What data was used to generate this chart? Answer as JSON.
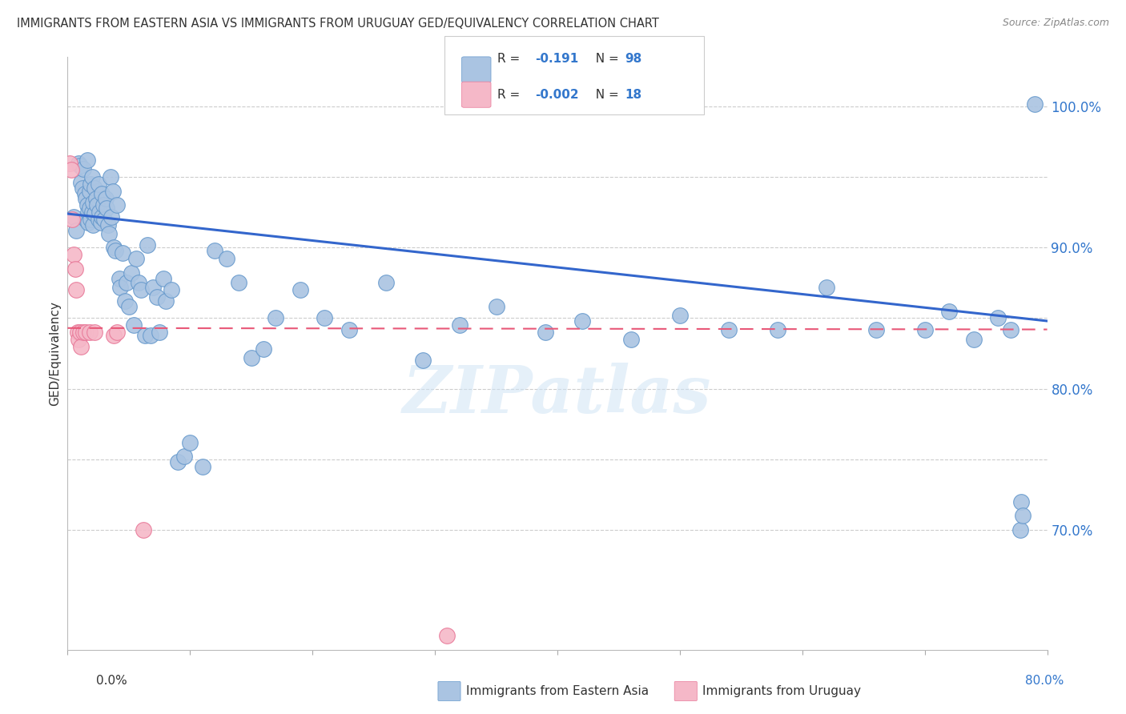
{
  "title": "IMMIGRANTS FROM EASTERN ASIA VS IMMIGRANTS FROM URUGUAY GED/EQUIVALENCY CORRELATION CHART",
  "source": "Source: ZipAtlas.com",
  "ylabel": "GED/Equivalency",
  "xlim": [
    0.0,
    0.8
  ],
  "ylim": [
    0.615,
    1.035
  ],
  "ytick_positions": [
    0.7,
    0.8,
    0.9,
    1.0
  ],
  "ytick_labels": [
    "70.0%",
    "80.0%",
    "90.0%",
    "100.0%"
  ],
  "ygrid_positions": [
    0.7,
    0.75,
    0.8,
    0.85,
    0.9,
    0.95,
    1.0
  ],
  "legend_v1": "-0.191",
  "legend_n1": "98",
  "legend_v2": "-0.002",
  "legend_n2": "18",
  "blue_color": "#aac4e2",
  "blue_edge": "#6699cc",
  "pink_color": "#f5b8c8",
  "pink_edge": "#e87898",
  "trend_blue": "#3366cc",
  "trend_pink": "#e85878",
  "blue_x": [
    0.005,
    0.007,
    0.009,
    0.01,
    0.011,
    0.012,
    0.013,
    0.014,
    0.015,
    0.015,
    0.016,
    0.016,
    0.017,
    0.017,
    0.018,
    0.018,
    0.019,
    0.019,
    0.02,
    0.02,
    0.021,
    0.021,
    0.022,
    0.022,
    0.023,
    0.024,
    0.025,
    0.025,
    0.026,
    0.027,
    0.028,
    0.028,
    0.029,
    0.03,
    0.031,
    0.032,
    0.033,
    0.034,
    0.035,
    0.036,
    0.037,
    0.038,
    0.039,
    0.04,
    0.042,
    0.043,
    0.045,
    0.047,
    0.048,
    0.05,
    0.052,
    0.054,
    0.056,
    0.058,
    0.06,
    0.063,
    0.065,
    0.068,
    0.07,
    0.073,
    0.075,
    0.078,
    0.08,
    0.085,
    0.09,
    0.095,
    0.1,
    0.11,
    0.12,
    0.13,
    0.14,
    0.15,
    0.16,
    0.17,
    0.19,
    0.21,
    0.23,
    0.26,
    0.29,
    0.32,
    0.35,
    0.39,
    0.42,
    0.46,
    0.5,
    0.54,
    0.58,
    0.62,
    0.66,
    0.7,
    0.72,
    0.74,
    0.76,
    0.77,
    0.778,
    0.779,
    0.78,
    0.79
  ],
  "blue_y": [
    0.922,
    0.912,
    0.96,
    0.958,
    0.946,
    0.942,
    0.956,
    0.938,
    0.92,
    0.935,
    0.962,
    0.93,
    0.925,
    0.918,
    0.94,
    0.928,
    0.92,
    0.945,
    0.925,
    0.95,
    0.932,
    0.916,
    0.942,
    0.924,
    0.935,
    0.93,
    0.92,
    0.945,
    0.925,
    0.918,
    0.922,
    0.938,
    0.93,
    0.92,
    0.935,
    0.928,
    0.916,
    0.91,
    0.95,
    0.922,
    0.94,
    0.9,
    0.898,
    0.93,
    0.878,
    0.872,
    0.896,
    0.862,
    0.875,
    0.858,
    0.882,
    0.845,
    0.892,
    0.875,
    0.87,
    0.838,
    0.902,
    0.838,
    0.872,
    0.865,
    0.84,
    0.878,
    0.862,
    0.87,
    0.748,
    0.752,
    0.762,
    0.745,
    0.898,
    0.892,
    0.875,
    0.822,
    0.828,
    0.85,
    0.87,
    0.85,
    0.842,
    0.875,
    0.82,
    0.845,
    0.858,
    0.84,
    0.848,
    0.835,
    0.852,
    0.842,
    0.842,
    0.872,
    0.842,
    0.842,
    0.855,
    0.835,
    0.85,
    0.842,
    0.7,
    0.72,
    0.71,
    1.002
  ],
  "pink_x": [
    0.002,
    0.003,
    0.004,
    0.005,
    0.006,
    0.007,
    0.008,
    0.009,
    0.01,
    0.011,
    0.013,
    0.015,
    0.018,
    0.022,
    0.038,
    0.04,
    0.062,
    0.31
  ],
  "pink_y": [
    0.96,
    0.955,
    0.92,
    0.895,
    0.885,
    0.87,
    0.84,
    0.835,
    0.84,
    0.83,
    0.84,
    0.84,
    0.84,
    0.84,
    0.838,
    0.84,
    0.7,
    0.625
  ],
  "blue_trend_x": [
    0.0,
    0.8
  ],
  "blue_trend_y": [
    0.924,
    0.848
  ],
  "pink_trend_x": [
    0.0,
    0.8
  ],
  "pink_trend_y": [
    0.843,
    0.842
  ],
  "watermark": "ZIPatlas",
  "legend_label1": "Immigrants from Eastern Asia",
  "legend_label2": "Immigrants from Uruguay"
}
